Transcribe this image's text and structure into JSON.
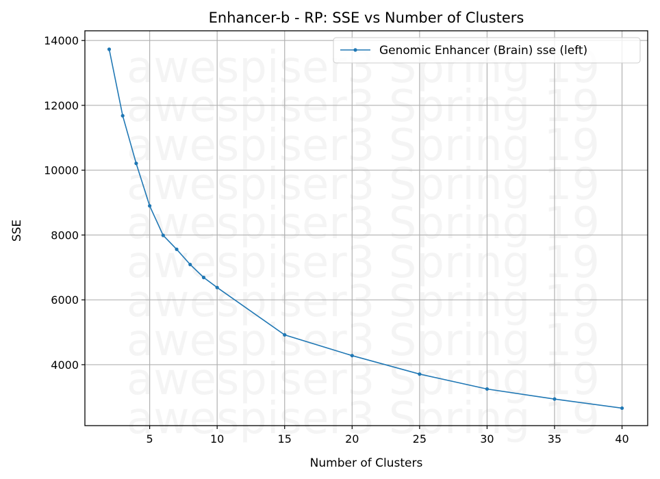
{
  "chart_data": {
    "type": "line",
    "title": "Enhancer-b - RP: SSE vs Number of Clusters",
    "xlabel": "Number of Clusters",
    "ylabel": "SSE",
    "xlim": [
      0.2,
      41.9
    ],
    "ylim": [
      2120,
      14300
    ],
    "x_ticks": [
      5,
      10,
      15,
      20,
      25,
      30,
      35,
      40
    ],
    "y_ticks": [
      4000,
      6000,
      8000,
      10000,
      12000,
      14000
    ],
    "grid": true,
    "legend_position": "top-right",
    "watermark_text": "awespiser3 Spring 19",
    "series": [
      {
        "name": "Genomic Enhancer (Brain) sse (left)",
        "color": "#1f77b4",
        "x": [
          2,
          3,
          4,
          5,
          6,
          7,
          8,
          9,
          10,
          15,
          20,
          25,
          30,
          35,
          40
        ],
        "values": [
          13730,
          11680,
          10210,
          8900,
          7990,
          7560,
          7090,
          6690,
          6380,
          4920,
          4280,
          3710,
          3250,
          2940,
          2660
        ]
      }
    ]
  }
}
